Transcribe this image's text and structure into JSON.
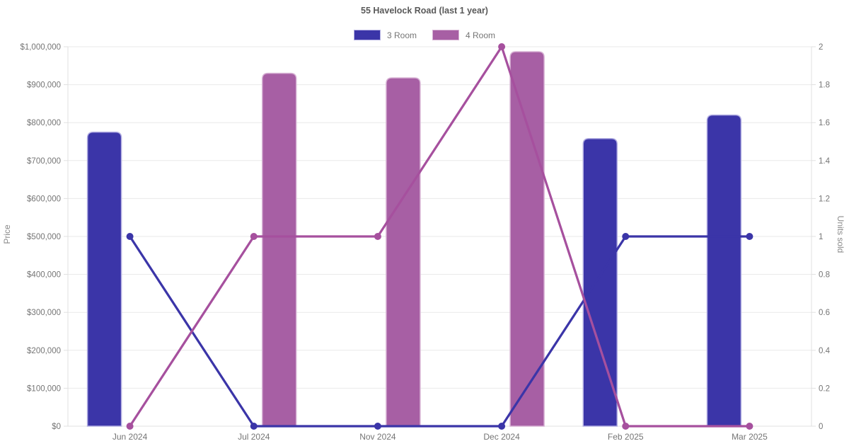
{
  "chart": {
    "title": "55 Havelock Road (last 1 year)",
    "legend": [
      {
        "label": "3 Room",
        "color": "#3b35a8",
        "border_color": "#b3afe2"
      },
      {
        "label": "4 Room",
        "color": "#a75fa4",
        "border_color": "#d7b2d4"
      }
    ],
    "theme": {
      "background": "#ffffff",
      "grid_color": "#e9e9e9",
      "axis_border_color": "#e0e0e0",
      "tick_text_color": "#757575",
      "title_text_color": "#595959",
      "axis_title_text_color": "#8a8a8a"
    }
  },
  "chart_data": {
    "type": "bar",
    "subtype": "combo-bar-line-dual-axis",
    "title": "55 Havelock Road (last 1 year)",
    "categories": [
      "Jun 2024",
      "Jul 2024",
      "Nov 2024",
      "Dec 2024",
      "Feb 2025",
      "Mar 2025"
    ],
    "series": [
      {
        "name": "3 Room",
        "type": "bar",
        "axis": "left",
        "color": "#3b35a8",
        "border_color": "#b3afe2",
        "values": [
          775000,
          null,
          null,
          null,
          758000,
          820000
        ]
      },
      {
        "name": "4 Room",
        "type": "bar",
        "axis": "left",
        "color": "#a75fa4",
        "border_color": "#d7b2d4",
        "values": [
          null,
          930000,
          918000,
          987000,
          null,
          null
        ]
      },
      {
        "name": "3 Room",
        "type": "line",
        "axis": "right",
        "color": "#3b35a8",
        "values": [
          1,
          0,
          0,
          0,
          1,
          1
        ]
      },
      {
        "name": "4 Room",
        "type": "line",
        "axis": "right",
        "color": "#a6509e",
        "values": [
          0,
          1,
          1,
          2,
          0,
          0
        ]
      }
    ],
    "left_axis": {
      "label": "Price",
      "min": 0,
      "max": 1000000,
      "tick_labels": [
        "$0",
        "$100,000",
        "$200,000",
        "$300,000",
        "$400,000",
        "$500,000",
        "$600,000",
        "$700,000",
        "$800,000",
        "$900,000",
        "$1,000,000"
      ]
    },
    "right_axis": {
      "label": "Units sold",
      "min": 0,
      "max": 2,
      "tick_labels": [
        "0",
        "0.2",
        "0.4",
        "0.6",
        "0.8",
        "1",
        "1.2",
        "1.4",
        "1.6",
        "1.8",
        "2"
      ]
    },
    "grid": true,
    "legend_position": "top"
  }
}
